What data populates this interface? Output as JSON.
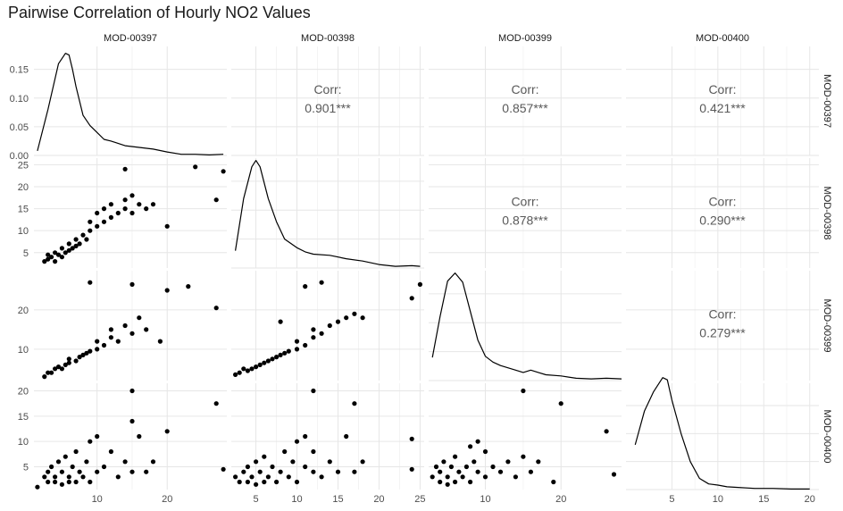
{
  "chart_data": {
    "type": "scatter",
    "title": "Pairwise Correlation of Hourly NO2 Values",
    "variables": [
      "MOD-00397",
      "MOD-00398",
      "MOD-00399",
      "MOD-00400"
    ],
    "grid": true,
    "corr_label": "Corr:",
    "correlations": [
      {
        "row": "MOD-00397",
        "col": "MOD-00398",
        "value": "0.901***"
      },
      {
        "row": "MOD-00397",
        "col": "MOD-00399",
        "value": "0.857***"
      },
      {
        "row": "MOD-00397",
        "col": "MOD-00400",
        "value": "0.421***"
      },
      {
        "row": "MOD-00398",
        "col": "MOD-00399",
        "value": "0.878***"
      },
      {
        "row": "MOD-00398",
        "col": "MOD-00400",
        "value": "0.290***"
      },
      {
        "row": "MOD-00399",
        "col": "MOD-00400",
        "value": "0.279***"
      }
    ],
    "x_ranges": {
      "MOD-00397": [
        1,
        28.5
      ],
      "MOD-00398": [
        2,
        25.5
      ],
      "MOD-00399": [
        2.5,
        28
      ],
      "MOD-00400": [
        0,
        21
      ]
    },
    "x_ticks": {
      "MOD-00397": [
        10,
        20
      ],
      "MOD-00398": [
        5,
        10,
        15,
        20,
        25
      ],
      "MOD-00399": [
        10,
        20
      ],
      "MOD-00400": [
        5,
        10,
        15,
        20
      ]
    },
    "y_axes": [
      {
        "row": "MOD-00397",
        "range": [
          0,
          0.19
        ],
        "ticks": [
          "0.00",
          "0.05",
          "0.10",
          "0.15"
        ]
      },
      {
        "row": "MOD-00398",
        "range": [
          1.5,
          26.5
        ],
        "ticks": [
          "5",
          "10",
          "15",
          "20",
          "25"
        ]
      },
      {
        "row": "MOD-00399",
        "range": [
          2,
          30
        ],
        "ticks": [
          "10",
          "20"
        ]
      },
      {
        "row": "MOD-00400",
        "range": [
          0.5,
          21.5
        ],
        "ticks": [
          "5",
          "10",
          "15",
          "20"
        ]
      }
    ],
    "density_curves": {
      "MOD-00397": {
        "x": [
          1.5,
          3,
          4.5,
          5.5,
          6,
          6.5,
          7,
          8,
          9,
          10,
          11,
          12,
          14,
          16,
          18,
          20,
          22,
          24,
          26,
          28
        ],
        "y": [
          0.008,
          0.08,
          0.16,
          0.178,
          0.175,
          0.15,
          0.12,
          0.07,
          0.052,
          0.04,
          0.028,
          0.025,
          0.017,
          0.014,
          0.011,
          0.006,
          0.002,
          0.002,
          0.001,
          0.002
        ]
      },
      "MOD-00398": {
        "x": [
          2.5,
          3.5,
          4.5,
          5,
          5.5,
          6.5,
          7.5,
          8.5,
          10,
          11,
          12,
          14,
          16,
          18,
          20,
          22,
          24,
          25
        ],
        "y": [
          0.03,
          0.12,
          0.175,
          0.186,
          0.175,
          0.12,
          0.08,
          0.05,
          0.035,
          0.028,
          0.024,
          0.022,
          0.016,
          0.012,
          0.006,
          0.003,
          0.004,
          0.003
        ]
      },
      "MOD-00399": {
        "x": [
          3,
          4,
          5,
          6,
          7,
          8,
          9,
          10,
          11,
          12,
          14,
          15,
          16,
          17,
          18,
          20,
          22,
          24,
          26,
          28
        ],
        "y": [
          0.04,
          0.11,
          0.172,
          0.186,
          0.17,
          0.12,
          0.07,
          0.042,
          0.032,
          0.026,
          0.018,
          0.014,
          0.018,
          0.014,
          0.01,
          0.008,
          0.004,
          0.003,
          0.004,
          0.003
        ]
      },
      "MOD-00400": {
        "x": [
          1,
          2,
          3,
          4,
          4.5,
          5,
          6,
          7,
          8,
          9,
          10,
          11,
          12,
          14,
          16,
          18,
          20
        ],
        "y": [
          0.08,
          0.14,
          0.175,
          0.2,
          0.196,
          0.16,
          0.1,
          0.05,
          0.02,
          0.01,
          0.008,
          0.005,
          0.004,
          0.002,
          0.002,
          0.001,
          0.001
        ]
      }
    },
    "scatter_series": [
      {
        "x_var": "MOD-00397",
        "y_var": "MOD-00398",
        "points": [
          [
            2.5,
            3
          ],
          [
            3,
            3.5
          ],
          [
            3,
            4.5
          ],
          [
            3.5,
            4
          ],
          [
            4,
            3
          ],
          [
            4,
            5
          ],
          [
            4.5,
            4.5
          ],
          [
            5,
            4
          ],
          [
            5,
            6
          ],
          [
            5.5,
            5
          ],
          [
            6,
            5.5
          ],
          [
            6,
            7
          ],
          [
            6.5,
            6
          ],
          [
            7,
            6.5
          ],
          [
            7,
            8
          ],
          [
            7.5,
            7
          ],
          [
            8,
            9
          ],
          [
            8.5,
            8
          ],
          [
            9,
            10
          ],
          [
            9,
            12
          ],
          [
            10,
            11
          ],
          [
            10,
            14
          ],
          [
            11,
            12
          ],
          [
            11,
            15
          ],
          [
            12,
            13
          ],
          [
            12,
            16
          ],
          [
            13,
            14
          ],
          [
            14,
            15
          ],
          [
            14,
            17
          ],
          [
            15,
            18
          ],
          [
            15,
            14
          ],
          [
            16,
            16
          ],
          [
            17,
            15
          ],
          [
            18,
            16
          ],
          [
            20,
            11
          ],
          [
            14,
            24
          ],
          [
            24,
            24.5
          ],
          [
            28,
            23.5
          ],
          [
            27,
            17
          ]
        ]
      },
      {
        "x_var": "MOD-00397",
        "y_var": "MOD-00399",
        "points": [
          [
            2.5,
            3
          ],
          [
            3,
            4
          ],
          [
            3.5,
            4
          ],
          [
            4,
            5
          ],
          [
            4.5,
            5.5
          ],
          [
            5,
            5
          ],
          [
            5.5,
            6
          ],
          [
            6,
            6.5
          ],
          [
            6,
            7.5
          ],
          [
            7,
            7
          ],
          [
            7.5,
            8
          ],
          [
            8,
            8.5
          ],
          [
            8.5,
            9
          ],
          [
            9,
            9.5
          ],
          [
            10,
            10
          ],
          [
            10,
            12
          ],
          [
            11,
            11
          ],
          [
            12,
            13
          ],
          [
            12,
            15
          ],
          [
            13,
            12
          ],
          [
            14,
            16
          ],
          [
            15,
            14
          ],
          [
            16,
            18
          ],
          [
            17,
            15
          ],
          [
            19,
            12
          ],
          [
            20,
            25
          ],
          [
            23,
            26
          ],
          [
            27,
            20.5
          ],
          [
            9,
            27
          ],
          [
            15,
            26.5
          ]
        ]
      },
      {
        "x_var": "MOD-00397",
        "y_var": "MOD-00400",
        "points": [
          [
            1.5,
            1
          ],
          [
            2.5,
            3
          ],
          [
            3,
            2
          ],
          [
            3,
            4
          ],
          [
            3.5,
            5
          ],
          [
            4,
            2
          ],
          [
            4,
            3
          ],
          [
            4.5,
            6
          ],
          [
            5,
            1.5
          ],
          [
            5,
            4
          ],
          [
            5.5,
            7
          ],
          [
            6,
            2
          ],
          [
            6,
            3
          ],
          [
            6.5,
            5
          ],
          [
            7,
            2
          ],
          [
            7,
            8
          ],
          [
            7.5,
            4
          ],
          [
            8,
            3
          ],
          [
            8.5,
            6
          ],
          [
            9,
            10
          ],
          [
            9,
            2
          ],
          [
            10,
            4
          ],
          [
            10,
            11
          ],
          [
            11,
            5
          ],
          [
            12,
            8
          ],
          [
            13,
            3
          ],
          [
            14,
            6
          ],
          [
            15,
            4
          ],
          [
            15,
            14
          ],
          [
            15,
            20
          ],
          [
            16,
            11
          ],
          [
            17,
            4
          ],
          [
            18,
            6
          ],
          [
            20,
            12
          ],
          [
            27,
            17.5
          ],
          [
            28,
            4.5
          ]
        ]
      },
      {
        "x_var": "MOD-00398",
        "y_var": "MOD-00399",
        "points": [
          [
            2.5,
            3.5
          ],
          [
            3,
            4
          ],
          [
            3.5,
            5
          ],
          [
            4,
            4.5
          ],
          [
            4.5,
            5
          ],
          [
            5,
            5.5
          ],
          [
            5.5,
            6
          ],
          [
            6,
            6.5
          ],
          [
            6.5,
            7
          ],
          [
            7,
            7.5
          ],
          [
            7.5,
            8
          ],
          [
            8,
            8.5
          ],
          [
            8.5,
            9
          ],
          [
            9,
            9.5
          ],
          [
            10,
            10
          ],
          [
            10,
            12
          ],
          [
            11,
            11
          ],
          [
            12,
            13
          ],
          [
            12,
            15
          ],
          [
            13,
            14
          ],
          [
            14,
            16
          ],
          [
            15,
            17
          ],
          [
            16,
            18
          ],
          [
            17,
            19
          ],
          [
            18,
            18
          ],
          [
            8,
            17
          ],
          [
            13,
            27
          ],
          [
            11,
            26
          ],
          [
            24,
            23
          ],
          [
            25,
            26.5
          ]
        ]
      },
      {
        "x_var": "MOD-00398",
        "y_var": "MOD-00400",
        "points": [
          [
            2.5,
            3
          ],
          [
            3,
            2
          ],
          [
            3.5,
            4
          ],
          [
            4,
            2
          ],
          [
            4,
            5
          ],
          [
            4.5,
            3
          ],
          [
            5,
            1.5
          ],
          [
            5,
            6
          ],
          [
            5.5,
            4
          ],
          [
            6,
            2
          ],
          [
            6,
            7
          ],
          [
            6.5,
            3
          ],
          [
            7,
            5
          ],
          [
            7.5,
            2
          ],
          [
            8,
            4
          ],
          [
            8.5,
            8
          ],
          [
            9,
            3
          ],
          [
            9.5,
            6
          ],
          [
            10,
            10
          ],
          [
            10,
            2
          ],
          [
            11,
            5
          ],
          [
            11,
            11
          ],
          [
            12,
            4
          ],
          [
            12,
            8
          ],
          [
            13,
            3
          ],
          [
            14,
            6
          ],
          [
            15,
            4
          ],
          [
            16,
            11
          ],
          [
            17,
            4
          ],
          [
            17,
            17.5
          ],
          [
            18,
            6
          ],
          [
            12,
            20
          ],
          [
            24,
            10.5
          ],
          [
            24,
            4.5
          ]
        ]
      },
      {
        "x_var": "MOD-00399",
        "y_var": "MOD-00400",
        "points": [
          [
            3,
            3
          ],
          [
            3.5,
            5
          ],
          [
            4,
            2
          ],
          [
            4,
            4
          ],
          [
            4.5,
            6
          ],
          [
            5,
            3
          ],
          [
            5,
            1.5
          ],
          [
            5.5,
            5
          ],
          [
            6,
            2
          ],
          [
            6,
            7
          ],
          [
            6.5,
            4
          ],
          [
            7,
            3
          ],
          [
            7.5,
            5
          ],
          [
            8,
            2
          ],
          [
            8,
            9
          ],
          [
            8.5,
            6
          ],
          [
            9,
            4
          ],
          [
            9,
            10
          ],
          [
            10,
            3
          ],
          [
            10,
            8
          ],
          [
            11,
            5
          ],
          [
            12,
            4
          ],
          [
            13,
            6
          ],
          [
            14,
            3
          ],
          [
            15,
            7
          ],
          [
            15,
            20
          ],
          [
            16,
            4
          ],
          [
            17,
            6
          ],
          [
            19,
            2
          ],
          [
            20,
            17.5
          ],
          [
            26,
            12
          ],
          [
            27,
            3.5
          ]
        ]
      }
    ]
  }
}
